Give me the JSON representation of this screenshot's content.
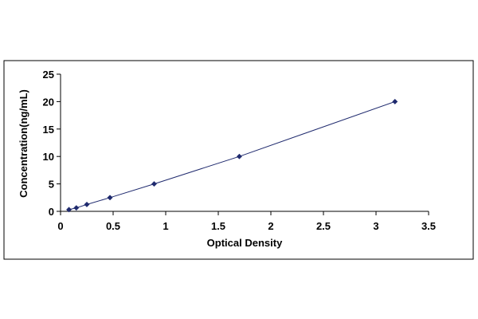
{
  "chart_data": {
    "type": "scatter",
    "title": "",
    "xlabel": "Optical Density",
    "ylabel": "Concentration(ng/mL)",
    "xlim": [
      0,
      3.5
    ],
    "ylim": [
      0,
      25
    ],
    "xticks": [
      "0",
      "0.5",
      "1",
      "1.5",
      "2",
      "2.5",
      "3",
      "3.5"
    ],
    "yticks": [
      "0",
      "5",
      "10",
      "15",
      "20",
      "25"
    ],
    "grid": false,
    "legend": "none",
    "series": [
      {
        "x": [
          0.08,
          0.15,
          0.25,
          0.47,
          0.89,
          1.7,
          3.18
        ],
        "y": [
          0.31,
          0.63,
          1.25,
          2.5,
          5,
          10,
          20
        ],
        "color": "#1f2a6e",
        "line": true
      }
    ]
  }
}
